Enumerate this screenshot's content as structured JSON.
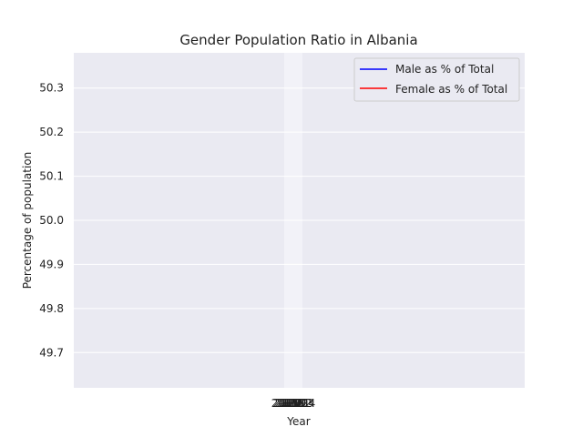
{
  "chart_data": {
    "type": "line",
    "title": "Gender Population Ratio in Albania",
    "xlabel": "Year",
    "ylabel": "Percentage of population",
    "x_tick_labels": [
      "2015",
      "2016",
      "2017",
      "2018",
      "2019",
      "2020",
      "2021",
      "2022",
      "2023",
      "2024"
    ],
    "y_ticks": [
      49.7,
      49.8,
      49.9,
      50.0,
      50.1,
      50.2,
      50.3
    ],
    "ylim": [
      49.62,
      50.38
    ],
    "grid": true,
    "legend_position": "top-right",
    "series": [
      {
        "name": "Male as % of Total",
        "color": "#0000ff",
        "values": []
      },
      {
        "name": "Female as % of Total",
        "color": "#ff0000",
        "values": []
      }
    ]
  }
}
